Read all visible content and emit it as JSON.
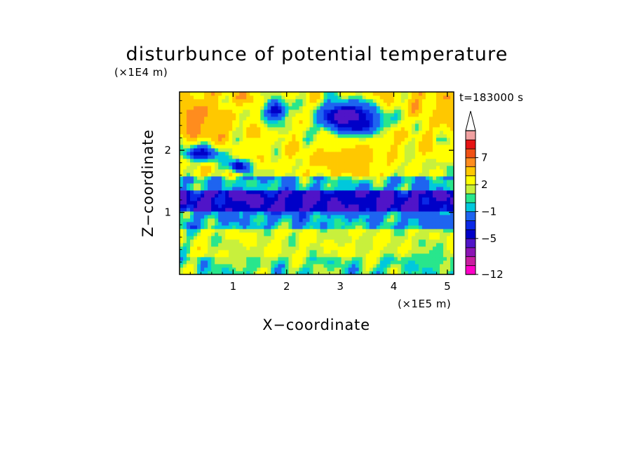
{
  "chart_data": {
    "type": "heatmap",
    "title": "disturbunce of potential temperature",
    "xlabel": "X−coordinate",
    "ylabel": "Z−coordinate",
    "x_unit": "(×1E5 m)",
    "y_unit": "(×1E4 m)",
    "time_label": "t=183000 s",
    "xlim": [
      0,
      5.12
    ],
    "ylim": [
      0,
      2.94
    ],
    "x_ticks": [
      1,
      2,
      3,
      4,
      5
    ],
    "y_ticks": [
      1,
      2
    ],
    "x_tick_labels": [
      "1",
      "2",
      "3",
      "4",
      "5"
    ],
    "y_tick_labels": [
      "1",
      "2"
    ],
    "colorbar": {
      "levels": [
        -12,
        -11,
        -9,
        -7,
        -5,
        -4,
        -3,
        -1,
        0,
        1,
        2,
        4,
        6,
        7,
        9,
        11
      ],
      "colors": [
        "#ff00c8",
        "#c81ea0",
        "#8c14b4",
        "#5014c8",
        "#0000c8",
        "#0a28e6",
        "#1e64f0",
        "#00c8dc",
        "#28e68c",
        "#c8f03c",
        "#ffff00",
        "#ffc800",
        "#ff8c1e",
        "#f05014",
        "#e61414",
        "#f0a0a0"
      ],
      "tick_labels": [
        "−12",
        "−5",
        "−1",
        "2",
        "7"
      ],
      "tick_values": [
        -12,
        -5,
        -1,
        2,
        7
      ],
      "extend_top": true
    },
    "bands": [
      {
        "z_from": 0.0,
        "z_to": 0.3,
        "typical_value": 0.5
      },
      {
        "z_from": 0.3,
        "z_to": 0.75,
        "typical_value": 1.8
      },
      {
        "z_from": 0.75,
        "z_to": 1.0,
        "typical_value": -0.8
      },
      {
        "z_from": 1.0,
        "z_to": 1.35,
        "typical_value": -4.8
      },
      {
        "z_from": 1.35,
        "z_to": 1.6,
        "typical_value": -0.5
      },
      {
        "z_from": 1.6,
        "z_to": 2.2,
        "typical_value": 2.5
      },
      {
        "z_from": 2.2,
        "z_to": 2.94,
        "typical_value": 3.5
      }
    ],
    "features": [
      {
        "x": 0.3,
        "z": 2.55,
        "value": 7,
        "radius_x": 0.35,
        "radius_z": 0.3
      },
      {
        "x": 0.55,
        "z": 2.5,
        "value": 6,
        "radius_x": 0.3,
        "radius_z": 0.25
      },
      {
        "x": 5.0,
        "z": 2.7,
        "value": 6,
        "radius_x": 0.25,
        "radius_z": 0.3
      },
      {
        "x": 3.1,
        "z": 2.55,
        "value": -7,
        "radius_x": 0.55,
        "radius_z": 0.25
      },
      {
        "x": 3.3,
        "z": 2.4,
        "value": -5,
        "radius_x": 0.5,
        "radius_z": 0.2
      },
      {
        "x": 1.8,
        "z": 2.65,
        "value": -5,
        "radius_x": 0.25,
        "radius_z": 0.2
      },
      {
        "x": 0.4,
        "z": 1.95,
        "value": -5,
        "radius_x": 0.35,
        "radius_z": 0.12
      },
      {
        "x": 1.1,
        "z": 1.75,
        "value": -5,
        "radius_x": 0.18,
        "radius_z": 0.1
      },
      {
        "x": 3.2,
        "z": 1.85,
        "value": 6,
        "radius_x": 0.6,
        "radius_z": 0.25
      },
      {
        "x": 2.8,
        "z": 2.05,
        "value": 4,
        "radius_x": 0.4,
        "radius_z": 0.2
      },
      {
        "x": 3.8,
        "z": 2.0,
        "value": 4,
        "radius_x": 0.45,
        "radius_z": 0.2
      },
      {
        "x": 2.6,
        "z": 1.15,
        "value": -5,
        "radius_x": 2.0,
        "radius_z": 0.15
      },
      {
        "x": 4.7,
        "z": 0.85,
        "value": -3,
        "radius_x": 0.3,
        "radius_z": 0.12
      },
      {
        "x": 1.5,
        "z": 0.45,
        "value": 2,
        "radius_x": 0.7,
        "radius_z": 0.25
      },
      {
        "x": 3.5,
        "z": 0.5,
        "value": 2,
        "radius_x": 0.9,
        "radius_z": 0.25
      },
      {
        "x": 4.6,
        "z": 0.2,
        "value": 0,
        "radius_x": 0.4,
        "radius_z": 0.2
      }
    ]
  }
}
